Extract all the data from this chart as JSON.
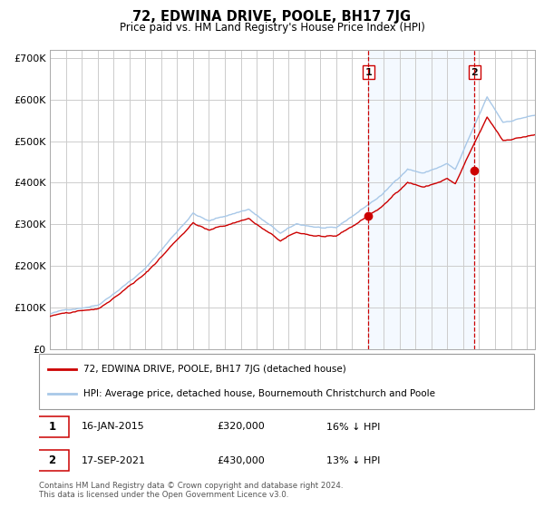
{
  "title": "72, EDWINA DRIVE, POOLE, BH17 7JG",
  "subtitle": "Price paid vs. HM Land Registry's House Price Index (HPI)",
  "legend_line1": "72, EDWINA DRIVE, POOLE, BH17 7JG (detached house)",
  "legend_line2": "HPI: Average price, detached house, Bournemouth Christchurch and Poole",
  "annotation1_date": "16-JAN-2015",
  "annotation1_price": "£320,000",
  "annotation1_hpi": "16% ↓ HPI",
  "annotation2_date": "17-SEP-2021",
  "annotation2_price": "£430,000",
  "annotation2_hpi": "13% ↓ HPI",
  "footer": "Contains HM Land Registry data © Crown copyright and database right 2024.\nThis data is licensed under the Open Government Licence v3.0.",
  "sale1_year": 2015.04,
  "sale1_value": 320000,
  "sale2_year": 2021.71,
  "sale2_value": 430000,
  "hpi_color": "#a8c8e8",
  "price_color": "#cc0000",
  "marker_color": "#cc0000",
  "shade_color": "#ddeeff",
  "vline_color": "#cc0000",
  "grid_color": "#cccccc",
  "ylim": [
    0,
    720000
  ],
  "xlim_start": 1995.0,
  "xlim_end": 2025.5,
  "background_color": "#ffffff"
}
